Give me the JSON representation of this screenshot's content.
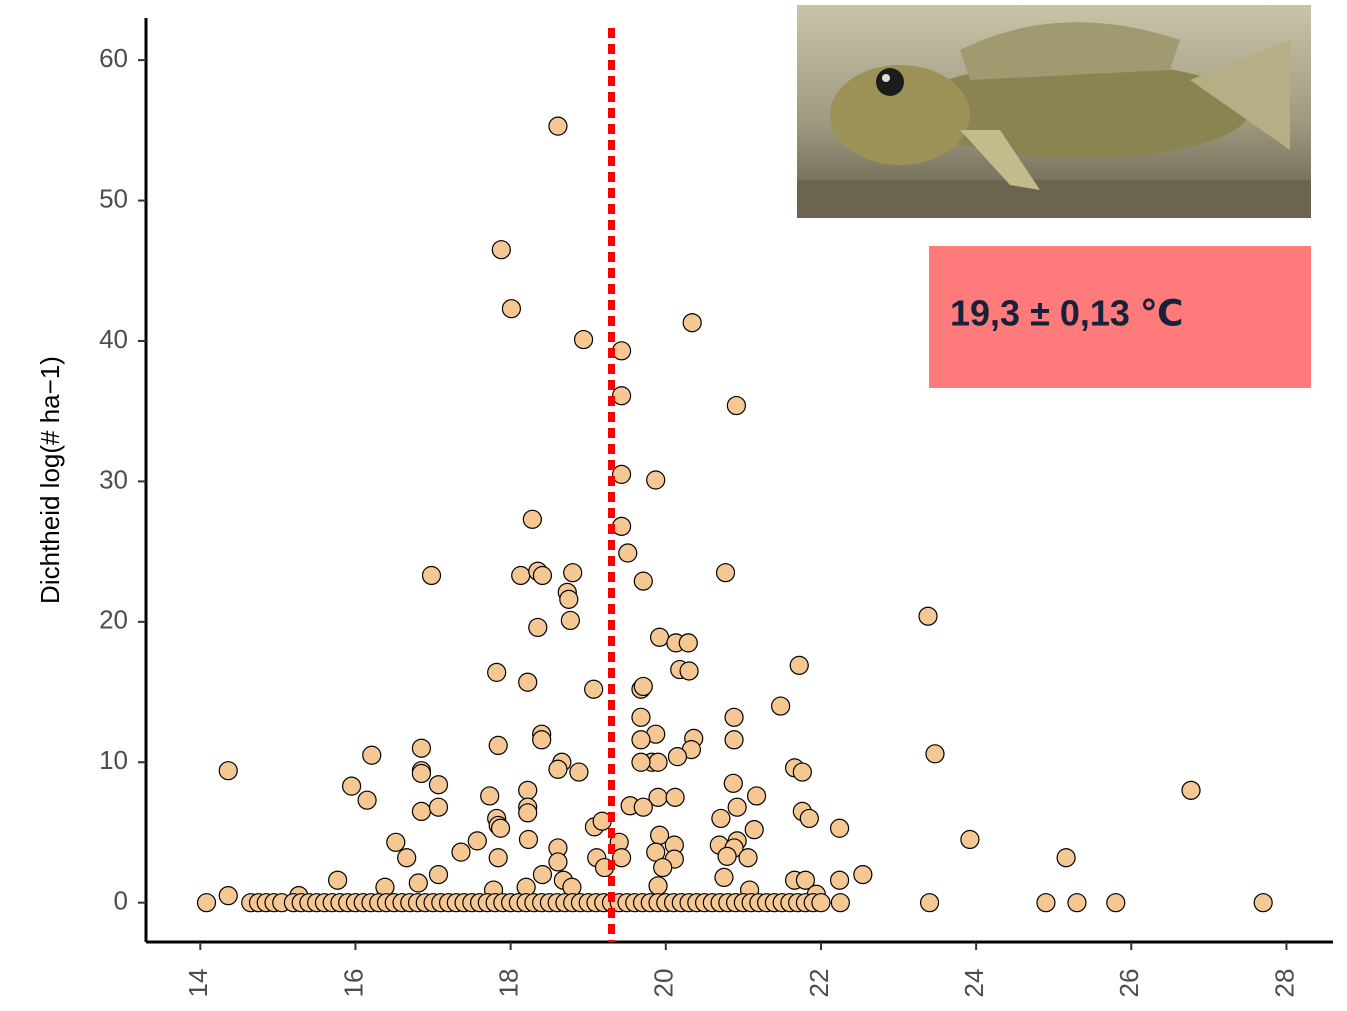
{
  "chart_data": {
    "type": "scatter",
    "y_label": "Dichtheid log(# ha−1)",
    "annotation": "19,3 ± 0,13 ℃",
    "annotation_color": "#ff7b7b",
    "vline": 19.3,
    "vline_color": "#ff0000",
    "color": "#f5c893",
    "xlim": [
      13.3,
      28.6
    ],
    "ylim": [
      -2.8,
      63
    ],
    "xticks": [
      14,
      16,
      18,
      20,
      22,
      24,
      26,
      28
    ],
    "yticks": [
      0,
      10,
      20,
      30,
      40,
      50,
      60
    ],
    "x": [
      14.36,
      18.61,
      17.88,
      18.01,
      18.94,
      19.43,
      20.34,
      19.43,
      20.91,
      19.43,
      19.87,
      18.28,
      19.43,
      19.51,
      19.71,
      16.98,
      18.13,
      18.35,
      18.41,
      18.8,
      18.73,
      18.75,
      18.77,
      18.35,
      20.77,
      23.38,
      19.92,
      20.13,
      20.29,
      20.18,
      20.3,
      21.72,
      17.82,
      18.22,
      19.07,
      19.68,
      19.71,
      21.48,
      19.68,
      20.88,
      18.4,
      18.4,
      19.87,
      19.68,
      20.36,
      20.88,
      17.84,
      16.21,
      16.85,
      23.47,
      20.33,
      20.15,
      19.82,
      19.9,
      19.68,
      18.66,
      18.61,
      18.88,
      16.85,
      16.85,
      21.66,
      21.76,
      26.77,
      15.95,
      16.15,
      17.07,
      18.22,
      17.73,
      20.87,
      21.17,
      19.9,
      20.12,
      19.54,
      19.71,
      20.92,
      16.85,
      17.07,
      18.22,
      18.22,
      21.76,
      21.85,
      20.71,
      17.82,
      17.84,
      17.87,
      19.08,
      19.18,
      21.14,
      22.24,
      19.92,
      18.23,
      19.4,
      17.57,
      16.52,
      18.61,
      23.92,
      20.92,
      20.69,
      20.88,
      20.11,
      17.36,
      19.87,
      20.79,
      21.06,
      16.66,
      17.84,
      19.43,
      19.11,
      25.16,
      20.11,
      18.61,
      19.96,
      19.21,
      20.75,
      17.07,
      22.54,
      15.77,
      21.66,
      22.24,
      21.8,
      18.68,
      18.41,
      16.81,
      16.38,
      18.2,
      19.9,
      21.08,
      17.78,
      18.79,
      21.94,
      15.27,
      14.36,
      14.08,
      14.65,
      14.75,
      14.85,
      14.95,
      15.05,
      15.2,
      15.3,
      15.4,
      15.5,
      15.6,
      15.7,
      15.8,
      15.9,
      16.0,
      16.1,
      16.2,
      16.3,
      16.4,
      16.5,
      16.6,
      16.7,
      16.8,
      16.9,
      17.0,
      17.1,
      17.2,
      17.3,
      17.4,
      17.5,
      17.6,
      17.7,
      17.8,
      17.9,
      18.0,
      18.1,
      18.2,
      18.3,
      18.4,
      18.5,
      18.6,
      18.7,
      18.8,
      18.9,
      19.0,
      19.1,
      19.2,
      19.3,
      19.4,
      19.5,
      19.6,
      19.7,
      19.8,
      19.9,
      20.0,
      20.1,
      20.2,
      20.3,
      20.4,
      20.5,
      20.6,
      20.7,
      20.8,
      20.9,
      21.0,
      21.1,
      21.2,
      21.3,
      21.4,
      21.5,
      21.6,
      21.7,
      21.8,
      21.9,
      22.0,
      22.25,
      23.4,
      24.9,
      25.3,
      25.8,
      27.7
    ],
    "values": [
      9.4,
      55.3,
      46.5,
      42.3,
      40.1,
      39.3,
      41.3,
      36.1,
      35.4,
      30.5,
      30.1,
      27.3,
      26.8,
      24.9,
      22.9,
      23.3,
      23.3,
      23.6,
      23.3,
      23.5,
      22.1,
      21.6,
      20.1,
      19.6,
      23.5,
      20.4,
      18.9,
      18.5,
      18.5,
      16.6,
      16.5,
      16.9,
      16.4,
      15.7,
      15.2,
      15.2,
      15.4,
      14.0,
      13.2,
      13.2,
      12.0,
      11.6,
      12.0,
      11.6,
      11.7,
      11.6,
      11.2,
      10.5,
      11.0,
      10.6,
      10.9,
      10.4,
      10.0,
      10.0,
      10.0,
      10.0,
      9.5,
      9.3,
      9.4,
      9.2,
      9.6,
      9.3,
      8.0,
      8.3,
      7.3,
      8.4,
      8.0,
      7.6,
      8.5,
      7.6,
      7.5,
      7.5,
      6.9,
      6.8,
      6.8,
      6.5,
      6.8,
      6.8,
      6.4,
      6.5,
      6.0,
      6.0,
      6.0,
      5.5,
      5.3,
      5.4,
      5.8,
      5.2,
      5.3,
      4.8,
      4.5,
      4.3,
      4.4,
      4.3,
      3.9,
      4.5,
      4.4,
      4.1,
      3.9,
      4.1,
      3.6,
      3.6,
      3.3,
      3.2,
      3.2,
      3.2,
      3.2,
      3.2,
      3.2,
      3.1,
      2.9,
      2.5,
      2.5,
      1.8,
      2.0,
      2.0,
      1.6,
      1.6,
      1.6,
      1.6,
      1.6,
      2.0,
      1.4,
      1.1,
      1.1,
      1.2,
      0.9,
      0.9,
      1.1,
      0.6,
      0.5,
      0.5,
      0,
      0,
      0,
      0,
      0,
      0,
      0,
      0,
      0,
      0,
      0,
      0,
      0,
      0,
      0,
      0,
      0,
      0,
      0,
      0,
      0,
      0,
      0,
      0,
      0,
      0,
      0,
      0,
      0,
      0,
      0,
      0,
      0,
      0,
      0,
      0,
      0,
      0,
      0,
      0,
      0,
      0,
      0,
      0,
      0,
      0,
      0,
      0,
      0,
      0,
      0,
      0,
      0,
      0,
      0,
      0,
      0,
      0,
      0,
      0,
      0,
      0,
      0,
      0,
      0,
      0,
      0,
      0,
      0,
      0,
      0,
      0,
      0,
      0,
      0,
      0,
      0,
      0,
      0,
      0,
      0
    ]
  }
}
